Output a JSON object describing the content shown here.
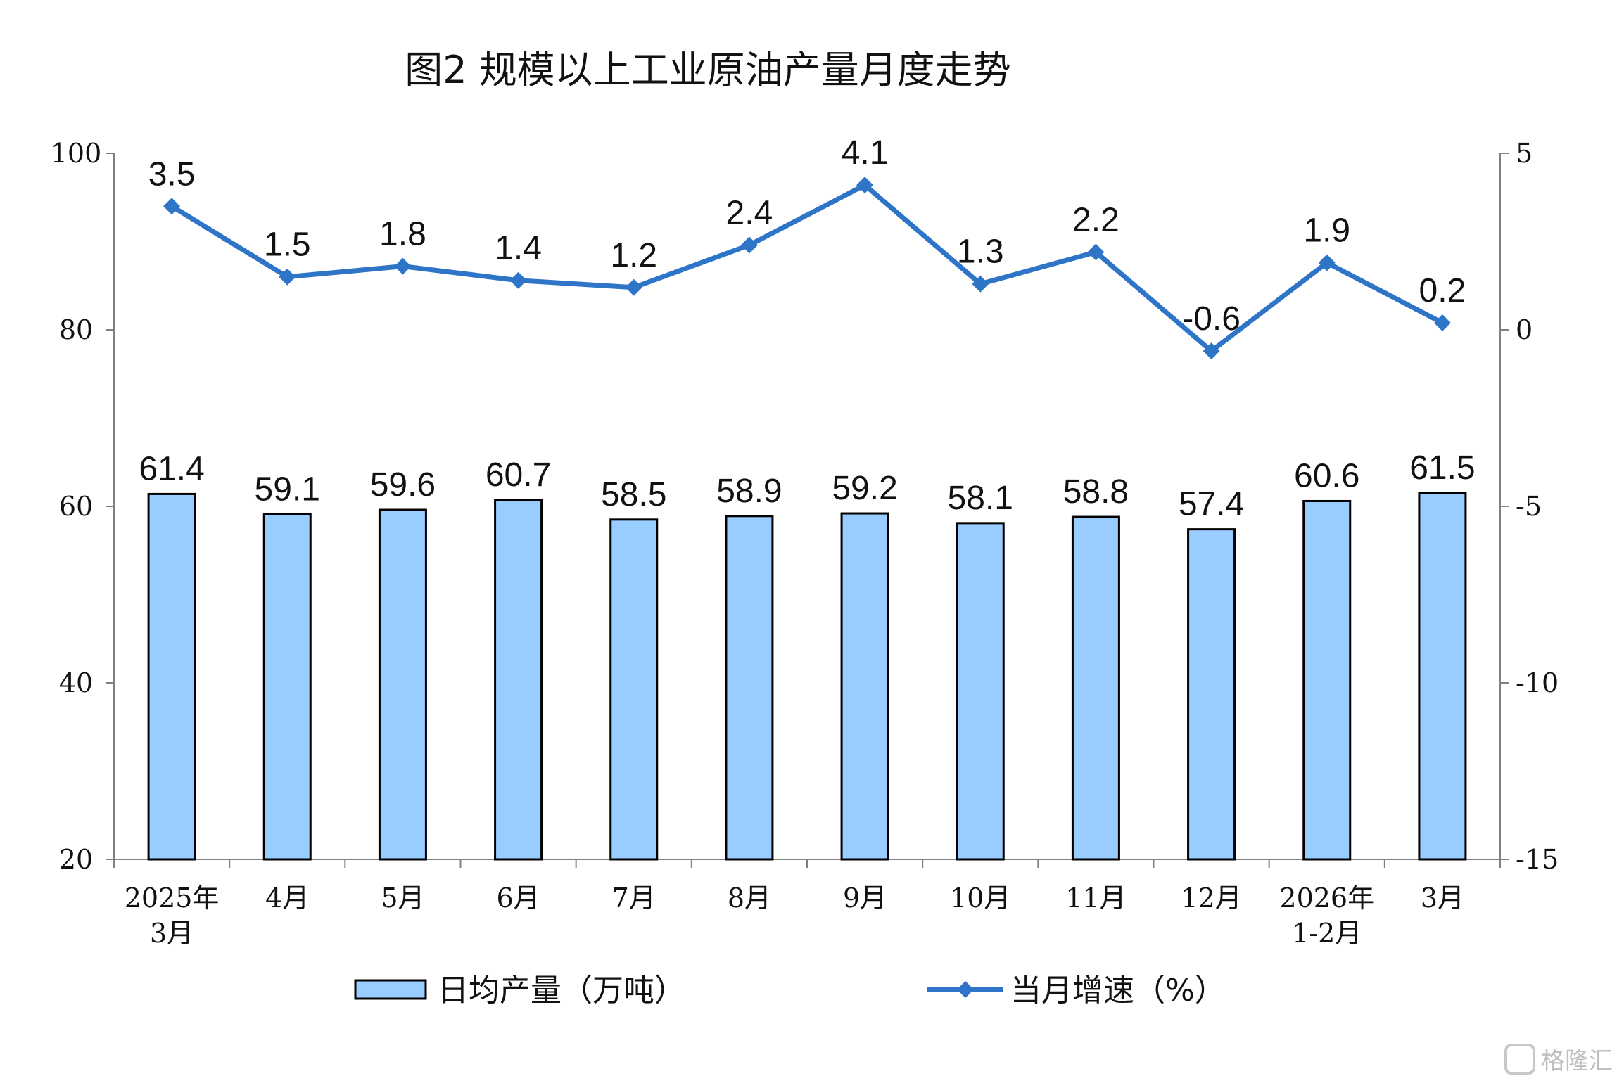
{
  "chart_data": {
    "type": "bar+line",
    "title": "图2  规模以上工业原油产量月度走势",
    "categories": [
      [
        "2025年",
        "3月"
      ],
      [
        "4月"
      ],
      [
        "5月"
      ],
      [
        "6月"
      ],
      [
        "7月"
      ],
      [
        "8月"
      ],
      [
        "9月"
      ],
      [
        "10月"
      ],
      [
        "11月"
      ],
      [
        "12月"
      ],
      [
        "2026年",
        "1-2月"
      ],
      [
        "3月"
      ]
    ],
    "series": [
      {
        "name": "日均产量（万吨）",
        "type": "bar",
        "axis": "left",
        "values": [
          61.4,
          59.1,
          59.6,
          60.7,
          58.5,
          58.9,
          59.2,
          58.1,
          58.8,
          57.4,
          60.6,
          61.5
        ],
        "labels": [
          "61.4",
          "59.1",
          "59.6",
          "60.7",
          "58.5",
          "58.9",
          "59.2",
          "58.1",
          "58.8",
          "57.4",
          "60.6",
          "61.5"
        ],
        "color": "#99ccff"
      },
      {
        "name": "当月增速（%）",
        "type": "line",
        "axis": "right",
        "values": [
          3.5,
          1.5,
          1.8,
          1.4,
          1.2,
          2.4,
          4.1,
          1.3,
          2.2,
          -0.6,
          1.9,
          0.2
        ],
        "labels": [
          "3.5",
          "1.5",
          "1.8",
          "1.4",
          "1.2",
          "2.4",
          "4.1",
          "1.3",
          "2.2",
          "-0.6",
          "1.9",
          "0.2"
        ],
        "color": "#2e75c8"
      }
    ],
    "left_axis": {
      "ylim": [
        20,
        100
      ],
      "ticks": [
        "100",
        "80",
        "60",
        "40",
        "20"
      ]
    },
    "right_axis": {
      "ylim": [
        -15,
        5
      ],
      "ticks": [
        "5",
        "0",
        "-5",
        "-10",
        "-15"
      ]
    },
    "legend": [
      "日均产量（万吨）",
      "当月增速（%）"
    ],
    "legend_position": "bottom",
    "grid": false
  },
  "watermark": "格隆汇"
}
